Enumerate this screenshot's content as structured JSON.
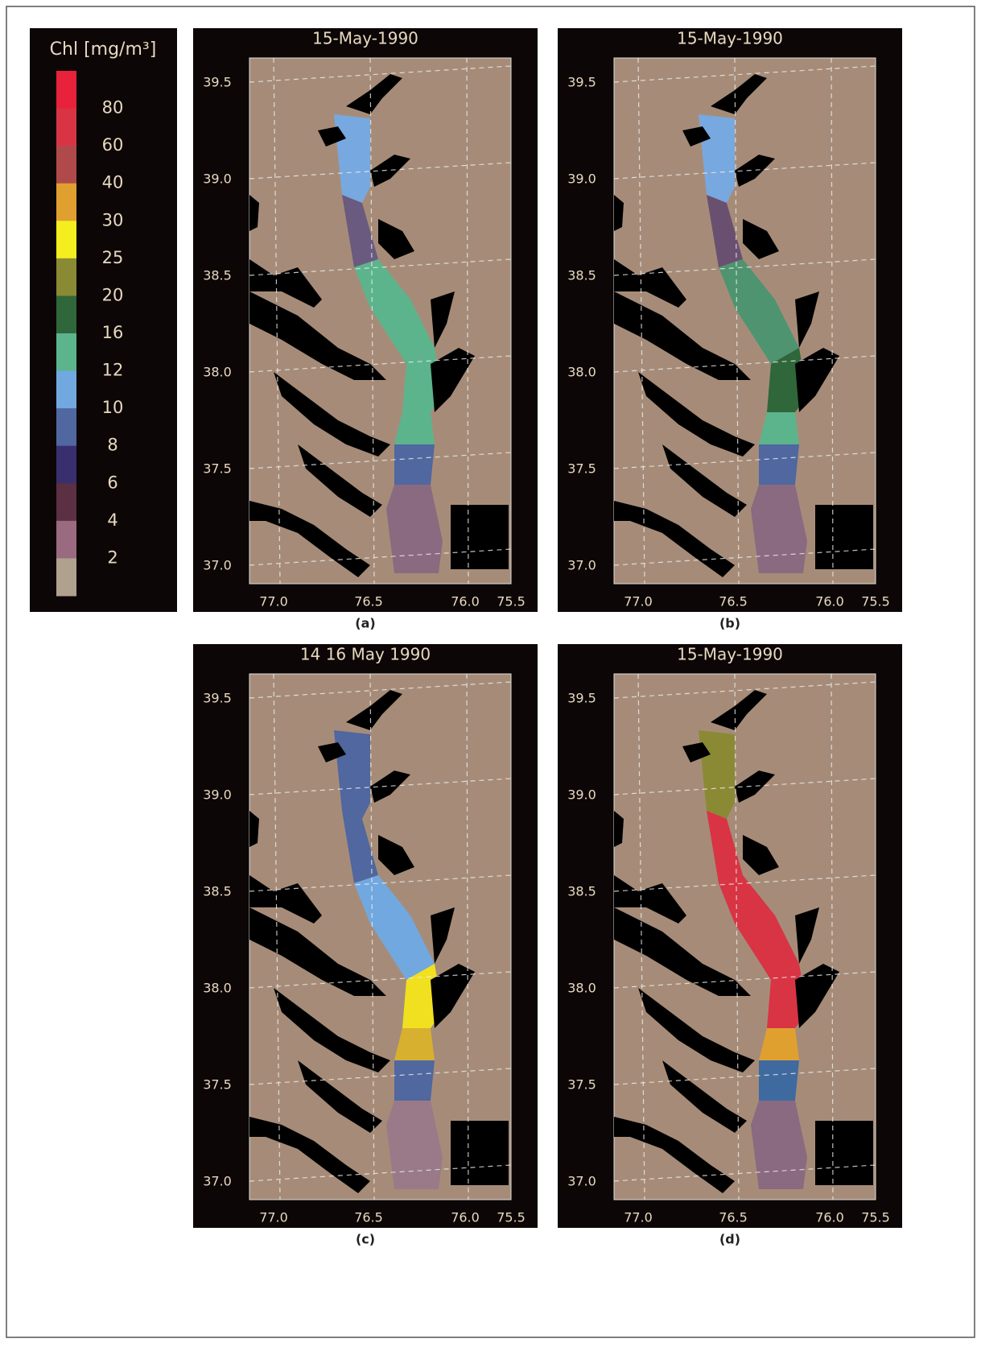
{
  "colorbar": {
    "title": "Chl [mg/m³]",
    "ticks": [
      80,
      60,
      40,
      30,
      25,
      20,
      16,
      12,
      10,
      8,
      6,
      4,
      2
    ],
    "colors": [
      "#e8223a",
      "#d83444",
      "#b04a4a",
      "#e0a030",
      "#f4ee20",
      "#8a8a34",
      "#2f663a",
      "#5cb48c",
      "#72a8e0",
      "#50679f",
      "#3a2f6e",
      "#5a3042",
      "#9a6a80",
      "#b0a08e"
    ]
  },
  "panels": [
    {
      "title": "15-May-1990",
      "caption": "(a)",
      "lat_labels": [
        "39.5",
        "39.0",
        "38.5",
        "38.0",
        "37.5",
        "37.0"
      ],
      "lon_labels": [
        "77.0",
        "76.5",
        "76.0",
        "75.5"
      ]
    },
    {
      "title": "15-May-1990",
      "caption": "(b)",
      "lat_labels": [
        "39.5",
        "39.0",
        "38.5",
        "38.0",
        "37.5",
        "37.0"
      ],
      "lon_labels": [
        "77.0",
        "76.5",
        "76.0",
        "75.5"
      ]
    },
    {
      "title": "14 16 May 1990",
      "caption": "(c)",
      "lat_labels": [
        "39.5",
        "39.0",
        "38.5",
        "38.0",
        "37.5",
        "37.0"
      ],
      "lon_labels": [
        "77.0",
        "76.5",
        "76.0",
        "75.5"
      ]
    },
    {
      "title": "15-May-1990",
      "caption": "(d)",
      "lat_labels": [
        "39.5",
        "39.0",
        "38.5",
        "38.0",
        "37.5",
        "37.0"
      ],
      "lon_labels": [
        "77.0",
        "76.5",
        "76.0",
        "75.5"
      ]
    }
  ]
}
